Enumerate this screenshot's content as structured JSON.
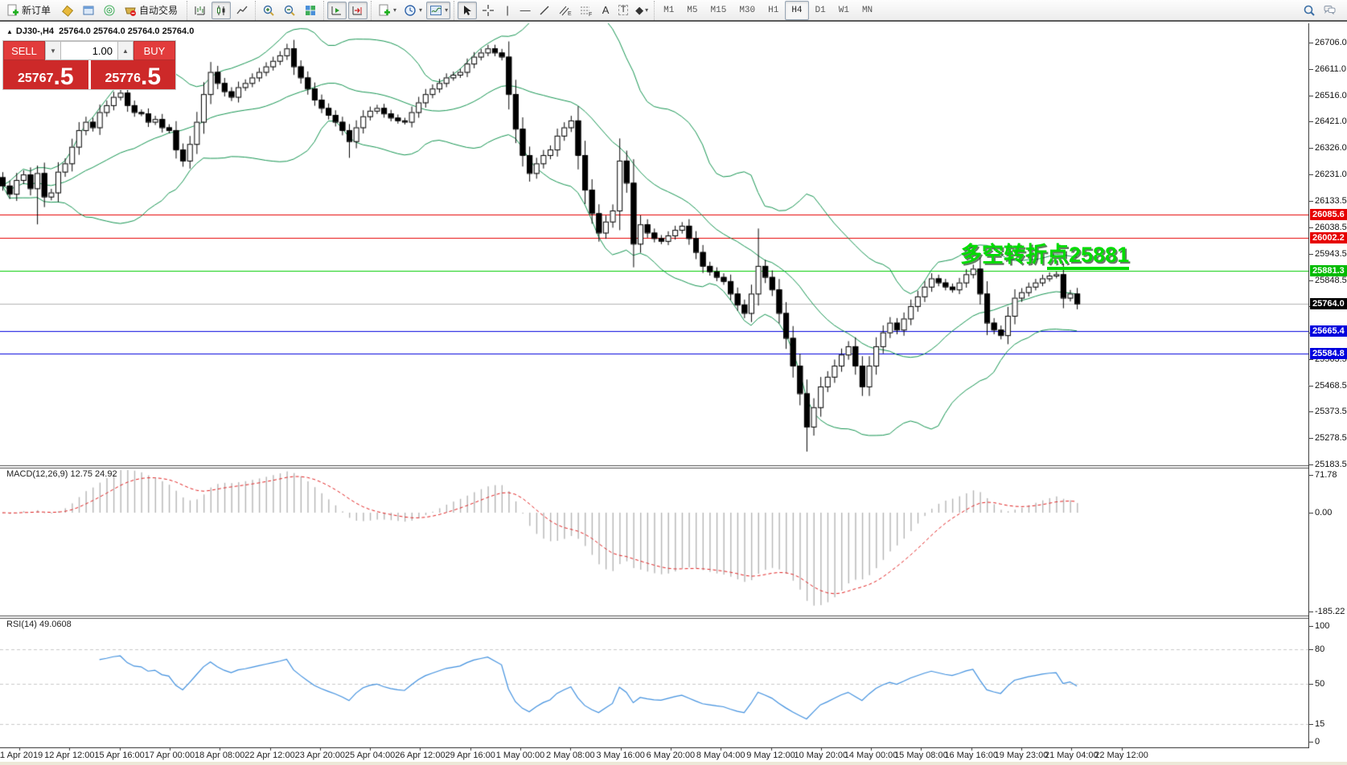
{
  "toolbar": {
    "new_order_label": "新订单",
    "auto_trading_label": "自动交易",
    "tool_letters": {
      "channel": "E",
      "fibonacci": "F",
      "text": "A",
      "label": "T"
    },
    "timeframes": [
      "M1",
      "M5",
      "M15",
      "M30",
      "H1",
      "H4",
      "D1",
      "W1",
      "MN"
    ],
    "active_timeframe": "H4"
  },
  "chart": {
    "title": {
      "marker": "▲",
      "symbol_period": "DJ30-,H4",
      "ohlc": "25764.0 25764.0 25764.0 25764.0"
    },
    "annotation": {
      "part1": "多空转折",
      "part2": "点25881",
      "full": "多空转折点25881"
    }
  },
  "trade_panel": {
    "sell_label": "SELL",
    "buy_label": "BUY",
    "volume": "1.00",
    "sell_price": {
      "main": "25767",
      "big": ".5"
    },
    "buy_price": {
      "main": "25776",
      "big": ".5"
    }
  },
  "price_axis": {
    "ticks": [
      "26706.0",
      "26611.0",
      "26516.0",
      "26421.0",
      "26326.0",
      "26231.0",
      "26133.5",
      "26038.5",
      "25943.5",
      "25848.5",
      "25753.5",
      "25658.5",
      "25563.5",
      "25468.5",
      "25373.5",
      "25278.5",
      "25183.5"
    ]
  },
  "hlines": [
    {
      "value": 26085.6,
      "label": "26085.6",
      "color": "#e60000",
      "badge": "#e60000",
      "name": "resistance-line-1"
    },
    {
      "value": 26002.2,
      "label": "26002.2",
      "color": "#e60000",
      "badge": "#e60000",
      "name": "resistance-line-2"
    },
    {
      "value": 25881.3,
      "label": "25881.3",
      "color": "#00cc00",
      "badge": "#00bb00",
      "name": "pivot-line"
    },
    {
      "value": 25764.0,
      "label": "25764.0",
      "color": "#b3b3b3",
      "badge": "#000000",
      "name": "current-price-line"
    },
    {
      "value": 25665.4,
      "label": "25665.4",
      "color": "#0000dd",
      "badge": "#0000dd",
      "name": "support-line-1"
    },
    {
      "value": 25584.8,
      "label": "25584.8",
      "color": "#0000dd",
      "badge": "#0000dd",
      "name": "support-line-2"
    }
  ],
  "macd": {
    "label": "MACD(12,26,9) 12.75 24.92",
    "ticks": [
      "71.78",
      "0.00",
      "-185.22"
    ],
    "tick_values": [
      71.78,
      0,
      -185.22
    ]
  },
  "rsi": {
    "label": "RSI(14) 49.0608",
    "ticks": [
      "100",
      "80",
      "50",
      "15",
      "0"
    ],
    "tick_values": [
      100,
      80,
      50,
      15,
      0
    ],
    "levels": [
      80,
      50,
      15
    ]
  },
  "time_axis": [
    "11 Apr 2019",
    "12 Apr 12:00",
    "15 Apr 16:00",
    "17 Apr 00:00",
    "18 Apr 08:00",
    "22 Apr 12:00",
    "23 Apr 20:00",
    "25 Apr 04:00",
    "26 Apr 12:00",
    "29 Apr 16:00",
    "1 May 00:00",
    "2 May 08:00",
    "3 May 16:00",
    "6 May 20:00",
    "8 May 04:00",
    "9 May 12:00",
    "10 May 20:00",
    "14 May 00:00",
    "15 May 08:00",
    "16 May 16:00",
    "19 May 23:00",
    "21 May 04:00",
    "22 May 12:00"
  ],
  "chart_data": {
    "type": "candlestick",
    "symbol": "DJ30-",
    "period": "H4",
    "ylim": [
      25183.5,
      26706.0
    ],
    "first_open": 26220,
    "closes": [
      26190,
      26160,
      26210,
      26230,
      26180,
      26235,
      26150,
      26165,
      26240,
      26270,
      26330,
      26390,
      26420,
      26400,
      26455,
      26480,
      26510,
      26525,
      26480,
      26455,
      26450,
      26420,
      26430,
      26400,
      26390,
      26320,
      26280,
      26340,
      26420,
      26520,
      26600,
      26560,
      26530,
      26510,
      26545,
      26560,
      26580,
      26600,
      26620,
      26640,
      26660,
      26685,
      26620,
      26580,
      26540,
      26500,
      26470,
      26445,
      26420,
      26390,
      26350,
      26400,
      26440,
      26460,
      26470,
      26450,
      26435,
      26425,
      26420,
      26455,
      26490,
      26520,
      26540,
      26560,
      26580,
      26590,
      26600,
      26630,
      26655,
      26670,
      26685,
      26670,
      26655,
      26520,
      26395,
      26300,
      26235,
      26270,
      26300,
      26320,
      26370,
      26400,
      26425,
      26300,
      26175,
      26090,
      26020,
      26060,
      26100,
      26280,
      26200,
      25980,
      26050,
      26020,
      26000,
      25990,
      26010,
      26030,
      26045,
      26000,
      25950,
      25900,
      25880,
      25860,
      25845,
      25800,
      25760,
      25730,
      25800,
      25900,
      25860,
      25815,
      25730,
      25640,
      25540,
      25440,
      25320,
      25390,
      25465,
      25500,
      25540,
      25580,
      25610,
      25540,
      25465,
      25540,
      25610,
      25660,
      25695,
      25670,
      25710,
      25755,
      25790,
      25825,
      25855,
      25840,
      25825,
      25815,
      25840,
      25870,
      25890,
      25800,
      25695,
      25670,
      25650,
      25720,
      25785,
      25805,
      25825,
      25840,
      25855,
      25865,
      25870,
      25785,
      25800,
      25764
    ],
    "wick_overrides": {
      "5": {
        "low": 26050
      },
      "50": {
        "low": 26290
      },
      "89": {
        "high": 26360
      },
      "109": {
        "high": 26035
      },
      "116": {
        "low": 25230
      }
    },
    "indicators": {
      "bollinger": [
        20,
        2
      ],
      "macd": [
        12,
        26,
        9
      ],
      "rsi": [
        14
      ]
    },
    "last_price": 25764.0
  },
  "colors": {
    "band_green": "#12934f",
    "hline_green": "#00cc00",
    "hline_red": "#e60000",
    "hline_blue": "#0000dd",
    "current_price_gray": "#b3b3b3",
    "candle_up": "#ffffff",
    "candle_down": "#000000",
    "macd_hist": "#b4b4b4",
    "macd_signal": "#e02020",
    "rsi_line": "#3f8fde",
    "annotation_green": "#00dc00",
    "trade_red": "#cd2929"
  }
}
